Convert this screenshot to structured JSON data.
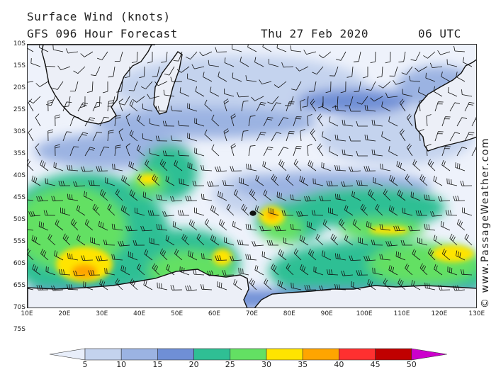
{
  "header": {
    "title_line1": "Surface Wind (knots)",
    "title_line2": "GFS 096 Hour Forecast",
    "date": "Thu 27 Feb 2020",
    "time": "06 UTC"
  },
  "copyright": "© www.PassageWeather.com",
  "axes": {
    "lat_labels": [
      "10S",
      "15S",
      "20S",
      "25S",
      "30S",
      "35S",
      "40S",
      "45S",
      "50S",
      "55S",
      "60S",
      "65S",
      "70S",
      "75S"
    ],
    "lon_labels": [
      "10E",
      "20E",
      "30E",
      "40E",
      "50E",
      "60E",
      "70E",
      "80E",
      "90E",
      "100E",
      "110E",
      "120E",
      "130E"
    ]
  },
  "legend": {
    "ticks": [
      "5",
      "10",
      "15",
      "20",
      "25",
      "30",
      "35",
      "40",
      "45",
      "50"
    ],
    "colors": [
      "#e8eefa",
      "#c4d3ee",
      "#9bb3e2",
      "#6f8fd6",
      "#2fbf94",
      "#63e063",
      "#ffe400",
      "#ffa500",
      "#ff3030",
      "#c00000",
      "#cc00cc"
    ]
  },
  "map": {
    "colors": {
      "land": "#eceff7",
      "coast": "#111111",
      "barb": "#111111"
    }
  }
}
